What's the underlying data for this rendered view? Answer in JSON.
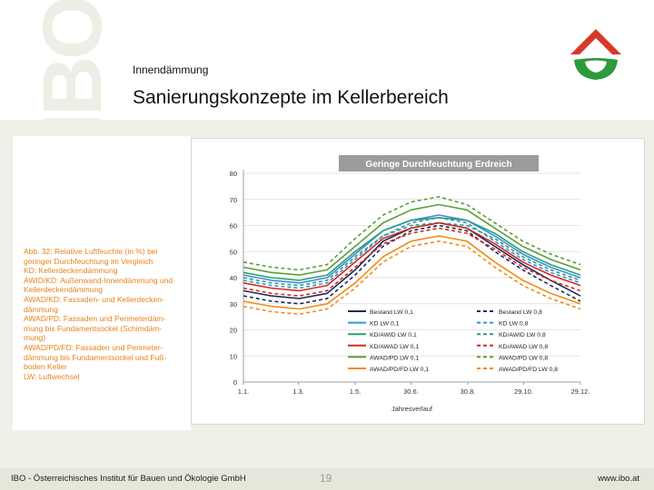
{
  "header": {
    "watermark": "IBO",
    "subtitle": "Innendämmung",
    "title": "Sanierungskonzepte im Kellerbereich"
  },
  "caption": {
    "text": "Abb. 32: Relative Luftfeuchte (in %) bei geringer Durchfeuchtung im Vergleich\nKD: Kellerdeckendämmung\nAWID/KD: Außenwand-Innendämmung und Kellerdeckendämmung\nAWAD/KD: Fassaden- und Kellerdecken-dämmung\nAWAD/PD: Fassaden und Perimeterdäm-mung bis Fundamentsockel (Schimdäm-mung)\nAWAD/PD/FD: Fassaden und Perimeter-dämmung bis Fundamentsockel und Fuß-boden Keller\nLW: Luftwechsel",
    "color": "#e8821c"
  },
  "footer": {
    "left": "IBO - Österreichisches Institut für Bauen und Ökologie GmbH",
    "page": "19",
    "right": "www.ibo.at"
  },
  "colors": {
    "logo_red": "#d63a2a",
    "logo_green": "#2e9a3c",
    "title_bar": "#9b9b9b"
  },
  "chart_data": {
    "type": "line",
    "title": "Geringe Durchfeuchtung Erdreich",
    "xlabel": "Jahresverlauf",
    "ylabel": "",
    "ylim": [
      0,
      80
    ],
    "yticks": [
      0,
      10,
      20,
      30,
      40,
      50,
      60,
      70,
      80
    ],
    "x_ticks": [
      "1.1.",
      "1.3.",
      "1.5.",
      "30.6.",
      "30.8.",
      "29.10.",
      "29.12."
    ],
    "x_tick_days": [
      0,
      59,
      120,
      180,
      241,
      301,
      362
    ],
    "x_days": [
      0,
      30,
      60,
      90,
      120,
      150,
      180,
      210,
      240,
      270,
      300,
      330,
      362
    ],
    "grid": true,
    "legend_position": "bottom-right",
    "series": [
      {
        "name": "Bestand LW 0,1",
        "color": "#1a2a5c",
        "dash": false,
        "values": [
          35,
          33,
          32,
          34,
          43,
          54,
          59,
          61,
          59,
          52,
          45,
          39,
          33
        ]
      },
      {
        "name": "Bestand LW 0,8",
        "color": "#1a2a5c",
        "dash": true,
        "values": [
          33,
          31,
          30,
          32,
          41,
          52,
          58,
          60,
          58,
          50,
          43,
          37,
          31
        ]
      },
      {
        "name": "KD LW 0,1",
        "color": "#3c8fd8",
        "dash": false,
        "values": [
          41,
          39,
          38,
          40,
          49,
          58,
          62,
          64,
          62,
          56,
          49,
          44,
          40
        ]
      },
      {
        "name": "KD LW 0,8",
        "color": "#3c8fd8",
        "dash": true,
        "values": [
          39,
          37,
          36,
          38,
          47,
          56,
          61,
          63,
          61,
          54,
          47,
          42,
          38
        ]
      },
      {
        "name": "KD/AWID LW 0,1",
        "color": "#2e9e78",
        "dash": false,
        "values": [
          42,
          40,
          39,
          41,
          50,
          58,
          62,
          63,
          62,
          57,
          50,
          45,
          41
        ]
      },
      {
        "name": "KD/AWID LW 0,8",
        "color": "#2e9e78",
        "dash": true,
        "values": [
          40,
          38,
          37,
          39,
          48,
          56,
          60,
          61,
          60,
          55,
          48,
          43,
          39
        ]
      },
      {
        "name": "KD/AWAD LW 0,1",
        "color": "#d62a22",
        "dash": false,
        "values": [
          38,
          36,
          35,
          37,
          46,
          55,
          59,
          61,
          59,
          53,
          46,
          41,
          37
        ]
      },
      {
        "name": "KD/AWAD LW 0,8",
        "color": "#d62a22",
        "dash": true,
        "values": [
          36,
          34,
          33,
          35,
          44,
          53,
          57,
          59,
          57,
          51,
          44,
          39,
          35
        ]
      },
      {
        "name": "AWAD/PD LW 0,1",
        "color": "#5a9e3a",
        "dash": false,
        "values": [
          44,
          42,
          41,
          43,
          52,
          61,
          66,
          68,
          66,
          59,
          52,
          47,
          43
        ]
      },
      {
        "name": "AWAD/PD LW 0,8",
        "color": "#5a9e3a",
        "dash": true,
        "values": [
          46,
          44,
          43,
          45,
          55,
          64,
          69,
          71,
          68,
          61,
          54,
          49,
          45
        ]
      },
      {
        "name": "AWAD/PD/FD LW 0,1",
        "color": "#f08c1a",
        "dash": false,
        "values": [
          31,
          29,
          28,
          30,
          38,
          48,
          54,
          56,
          54,
          46,
          39,
          34,
          30
        ]
      },
      {
        "name": "AWAD/PD/FD LW 0,8",
        "color": "#f08c1a",
        "dash": true,
        "values": [
          29,
          27,
          26,
          28,
          36,
          46,
          52,
          54,
          52,
          44,
          37,
          32,
          28
        ]
      }
    ]
  }
}
